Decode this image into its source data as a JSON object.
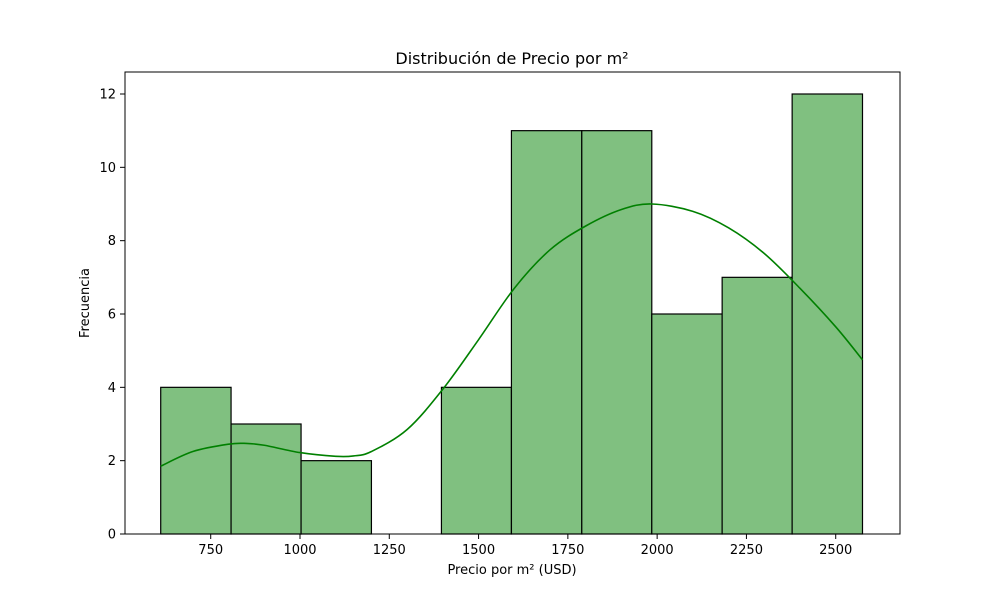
{
  "chart_data": {
    "type": "bar",
    "title": "Distribución de Precio por m²",
    "xlabel": "Precio por m² (USD)",
    "ylabel": "Frecuencia",
    "xlim": [
      510,
      2680
    ],
    "ylim": [
      0,
      12.6
    ],
    "xticks": [
      750,
      1000,
      1250,
      1500,
      1750,
      2000,
      2250,
      2500
    ],
    "yticks": [
      0,
      2,
      4,
      6,
      8,
      10,
      12
    ],
    "grid": false,
    "bins": [
      {
        "start": 610,
        "end": 807,
        "count": 4
      },
      {
        "start": 807,
        "end": 1003,
        "count": 3
      },
      {
        "start": 1003,
        "end": 1200,
        "count": 2
      },
      {
        "start": 1200,
        "end": 1396,
        "count": 0
      },
      {
        "start": 1396,
        "end": 1592,
        "count": 4
      },
      {
        "start": 1592,
        "end": 1789,
        "count": 11
      },
      {
        "start": 1789,
        "end": 1985,
        "count": 11
      },
      {
        "start": 1985,
        "end": 2182,
        "count": 6
      },
      {
        "start": 2182,
        "end": 2378,
        "count": 7
      },
      {
        "start": 2378,
        "end": 2575,
        "count": 12
      }
    ],
    "kde": {
      "x": [
        610,
        700,
        800,
        850,
        900,
        1000,
        1100,
        1150,
        1200,
        1300,
        1400,
        1500,
        1600,
        1700,
        1800,
        1900,
        1985,
        2100,
        2200,
        2300,
        2400,
        2500,
        2575
      ],
      "y": [
        1.85,
        2.25,
        2.45,
        2.47,
        2.42,
        2.22,
        2.12,
        2.13,
        2.25,
        2.85,
        3.95,
        5.3,
        6.7,
        7.75,
        8.4,
        8.85,
        9.0,
        8.8,
        8.35,
        7.65,
        6.7,
        5.65,
        4.75
      ]
    },
    "colors": {
      "bar_fill": "#80c080",
      "bar_edge": "#000000",
      "kde": "#008000"
    }
  }
}
